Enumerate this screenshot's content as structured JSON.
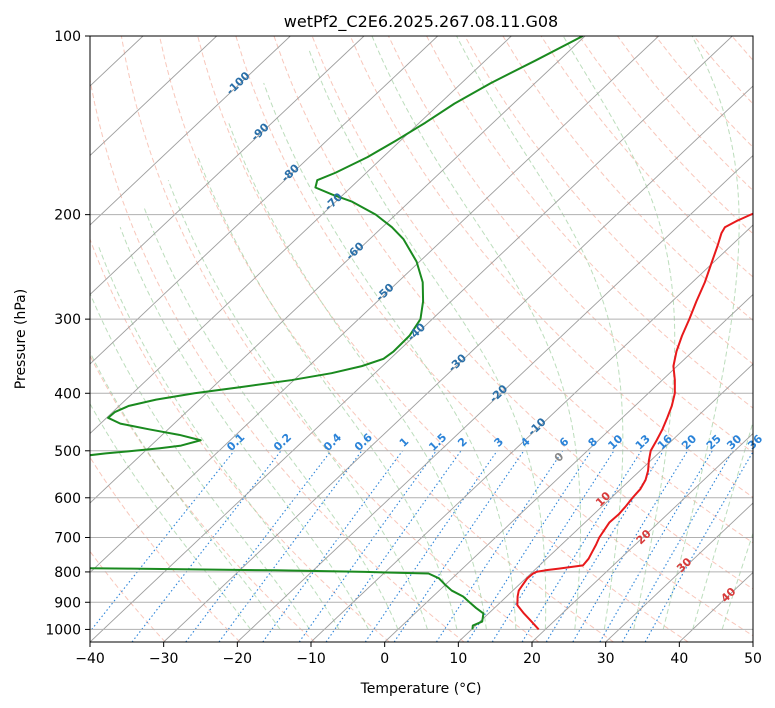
{
  "chart_data": {
    "type": "line",
    "title": "wetPf2_C2E6.2025.267.08.11.G08",
    "xlabel": "Temperature (°C)",
    "ylabel": "Pressure (hPa)",
    "xlim": [
      -40,
      50
    ],
    "ylim": [
      1050,
      100
    ],
    "y_scale": "log",
    "x_ticks": [
      "−40",
      "−30",
      "−20",
      "−10",
      "0",
      "10",
      "20",
      "30",
      "40",
      "50"
    ],
    "y_ticks": [
      "100",
      "200",
      "300",
      "400",
      "500",
      "600",
      "700",
      "800",
      "900",
      "1000"
    ],
    "grid": true,
    "isotherm_labels": [
      "-100",
      "-90",
      "-80",
      "-70",
      "-60",
      "-50",
      "-40",
      "-30",
      "-20",
      "-10"
    ],
    "mixing_ratio_labels": [
      "0.1",
      "0.2",
      "0.4",
      "0.6",
      "1",
      "1.5",
      "2",
      "3",
      "4",
      "6",
      "8",
      "10",
      "13",
      "16",
      "20",
      "25",
      "30",
      "36"
    ],
    "dry_adiabat_labels": [
      "0",
      "10",
      "20",
      "30",
      "40"
    ],
    "colors": {
      "temperature": "#e8191b",
      "dewpoint": "#1a8a1f",
      "isotherm": "#9e9e9e",
      "dry_adiabat": "#f3a28d",
      "moist_adiabat": "#9fcf9f",
      "mixing_ratio": "#2b83d8",
      "label_isotherm": "#2a6fa8",
      "label_adiabat": "#d83a3a",
      "grid": "#b0b0b0"
    },
    "series": [
      {
        "key": "temperature",
        "pressure": [
          1000,
          970,
          940,
          910,
          880,
          860,
          840,
          820,
          805,
          800,
          795,
          790,
          780,
          760,
          740,
          720,
          700,
          680,
          660,
          640,
          620,
          600,
          580,
          560,
          540,
          520,
          500,
          480,
          460,
          440,
          420,
          400,
          380,
          360,
          340,
          320,
          300,
          280,
          260,
          240,
          225,
          215,
          210,
          205,
          200,
          195,
          190,
          185,
          180,
          170,
          160,
          150,
          140,
          130,
          120,
          110,
          100
        ],
        "values": [
          19.1,
          17.0,
          14.8,
          12.7,
          11.5,
          10.8,
          10.5,
          10.2,
          10.3,
          10.5,
          11.5,
          13.1,
          15.9,
          15.7,
          15.2,
          14.7,
          14.1,
          13.7,
          13.3,
          13.4,
          13.2,
          12.9,
          12.7,
          12.1,
          11.1,
          9.8,
          8.6,
          7.9,
          7.1,
          6.1,
          5.0,
          3.6,
          1.7,
          -0.5,
          -2.2,
          -3.7,
          -5.1,
          -6.7,
          -8.3,
          -10.3,
          -11.9,
          -13.1,
          -13.5,
          -12.8,
          -11.8,
          -10.6,
          -9.5,
          -8.5,
          -7.8,
          -6.7,
          -6.4,
          -6.2,
          -6.4,
          -6.9,
          -7.4,
          -8.6,
          -9.6
        ]
      },
      {
        "key": "dewpoint",
        "pressure": [
          1000,
          985,
          970,
          940,
          920,
          900,
          880,
          860,
          840,
          820,
          805,
          800,
          795,
          790,
          785,
          780,
          775,
          760,
          740,
          720,
          700,
          690,
          680,
          670,
          660,
          655,
          540,
          520,
          505,
          500,
          495,
          490,
          480,
          470,
          460,
          450,
          440,
          430,
          420,
          410,
          400,
          390,
          380,
          370,
          360,
          350,
          340,
          320,
          300,
          280,
          260,
          240,
          220,
          210,
          200,
          190,
          185,
          180,
          175,
          170,
          160,
          150,
          140,
          130,
          120,
          110,
          100
        ],
        "values": [
          10.1,
          9.6,
          10.3,
          9.3,
          7.5,
          5.8,
          4.1,
          1.7,
          -0.1,
          -1.8,
          -3.9,
          -12.7,
          -25.2,
          -45.0,
          -70.0,
          -80.0,
          -80.0,
          -79.5,
          -66.0,
          -61.5,
          -64.0,
          -67.8,
          -71.0,
          -74.5,
          -78.0,
          -80.0,
          -81.0,
          -72.7,
          -65.0,
          -61.5,
          -58.4,
          -55.9,
          -54.0,
          -57.7,
          -62.6,
          -67.3,
          -69.8,
          -69.7,
          -68.7,
          -65.9,
          -61.6,
          -55.9,
          -50.3,
          -45.9,
          -42.8,
          -40.9,
          -40.6,
          -40.7,
          -41.6,
          -43.8,
          -46.6,
          -50.4,
          -55.4,
          -58.7,
          -62.7,
          -67.9,
          -71.5,
          -74.8,
          -75.6,
          -74.2,
          -72.1,
          -70.6,
          -69.2,
          -68.0,
          -66.0,
          -63.2,
          -60.3
        ]
      }
    ]
  }
}
